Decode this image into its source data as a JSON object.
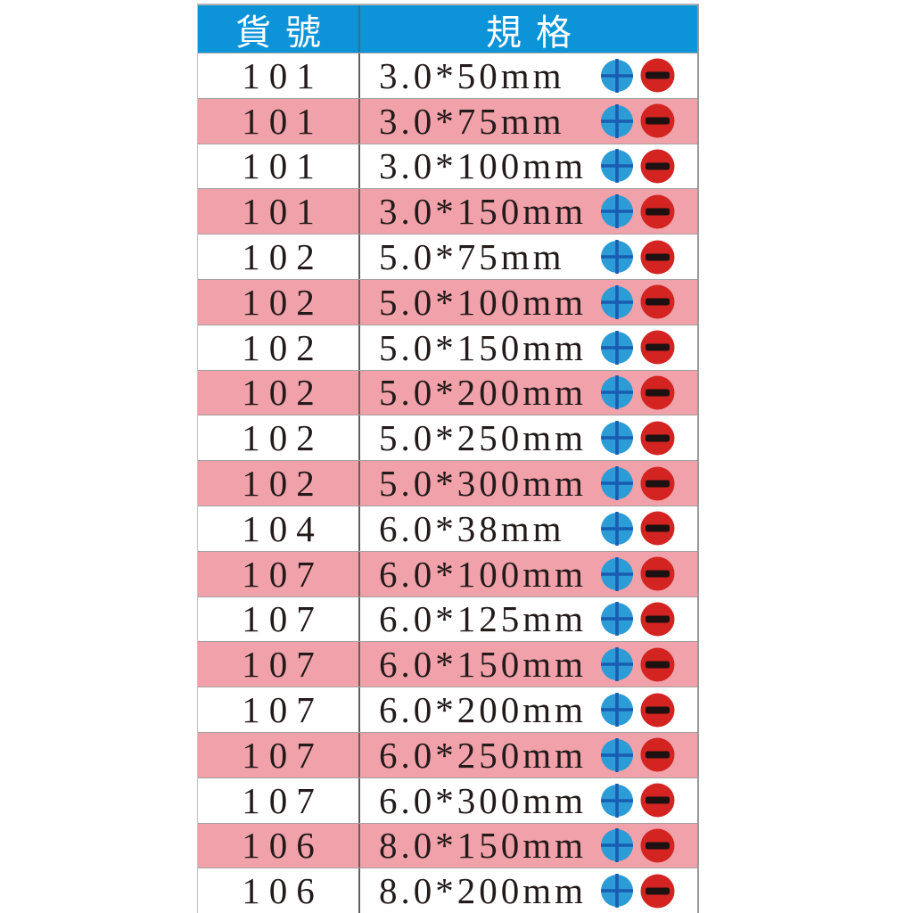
{
  "chart_data": {
    "type": "table",
    "title": "",
    "columns": [
      "貨號",
      "規格"
    ],
    "rows": [
      {
        "code": "101",
        "spec": "3.0*50mm"
      },
      {
        "code": "101",
        "spec": "3.0*75mm"
      },
      {
        "code": "101",
        "spec": "3.0*100mm"
      },
      {
        "code": "101",
        "spec": "3.0*150mm"
      },
      {
        "code": "102",
        "spec": "5.0*75mm"
      },
      {
        "code": "102",
        "spec": "5.0*100mm"
      },
      {
        "code": "102",
        "spec": "5.0*150mm"
      },
      {
        "code": "102",
        "spec": "5.0*200mm"
      },
      {
        "code": "102",
        "spec": "5.0*250mm"
      },
      {
        "code": "102",
        "spec": "5.0*300mm"
      },
      {
        "code": "104",
        "spec": "6.0*38mm"
      },
      {
        "code": "107",
        "spec": "6.0*100mm"
      },
      {
        "code": "107",
        "spec": "6.0*125mm"
      },
      {
        "code": "107",
        "spec": "6.0*150mm"
      },
      {
        "code": "107",
        "spec": "6.0*200mm"
      },
      {
        "code": "107",
        "spec": "6.0*250mm"
      },
      {
        "code": "107",
        "spec": "6.0*300mm"
      },
      {
        "code": "106",
        "spec": "8.0*150mm"
      },
      {
        "code": "106",
        "spec": "8.0*200mm"
      }
    ],
    "row_icons": [
      "phillips-plus-icon",
      "slotted-minus-icon"
    ],
    "layout_hints": {
      "striping": "alternating white/pink starting white",
      "header_style": "blue band, white text"
    }
  },
  "header": {
    "col_code_label": "貨號",
    "col_spec_label": "規格"
  },
  "colors": {
    "header_bg": "#0d93d8",
    "row_pink": "#f0a1a9",
    "icon_blue_circle": "#2b9cd6",
    "icon_plus_stroke": "#1a5cb0",
    "icon_red_circle": "#d32421",
    "icon_minus_bar": "#1d1111"
  }
}
